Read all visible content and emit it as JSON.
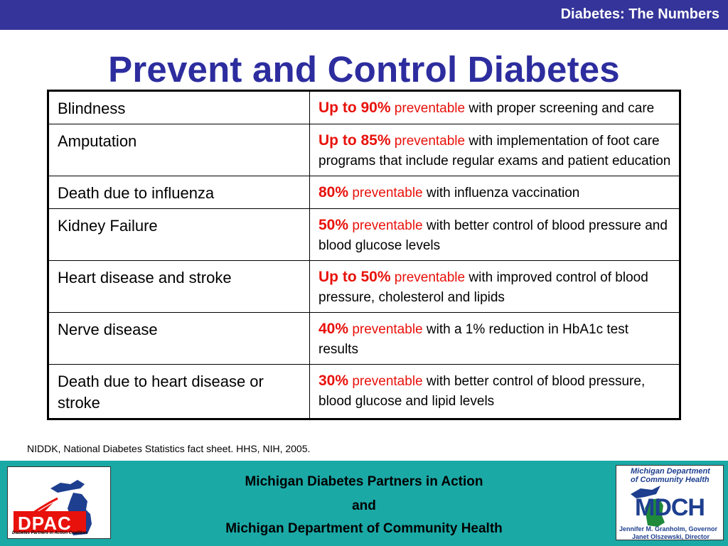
{
  "header": {
    "section_title": "Diabetes: The Numbers"
  },
  "slide": {
    "title": "Prevent and Control Diabetes"
  },
  "table": {
    "rows": [
      {
        "condition": "Blindness",
        "rate": "Up to 90%",
        "preventable": "preventable",
        "detail": " with proper screening and care"
      },
      {
        "condition": "Amputation",
        "rate": "Up to 85%",
        "preventable": "preventable",
        "detail": " with implementation of foot care programs that include regular exams and patient education"
      },
      {
        "condition": "Death due to influenza",
        "rate": "80%",
        "preventable": "preventable",
        "detail": " with influenza vaccination"
      },
      {
        "condition": "Kidney Failure",
        "rate": "50%",
        "preventable": "preventable",
        "detail": " with better control of blood pressure and blood glucose levels"
      },
      {
        "condition": "Heart disease and stroke",
        "rate": "Up to 50%",
        "preventable": "preventable",
        "detail": " with improved control of blood pressure, cholesterol and lipids"
      },
      {
        "condition": "Nerve disease",
        "rate": "40%",
        "preventable": "preventable",
        "detail": " with a 1% reduction in HbA1c test results"
      },
      {
        "condition": "Death due to heart disease or stroke",
        "rate": "30%",
        "preventable": "preventable",
        "detail": " with better control of blood pressure, blood glucose and lipid levels"
      }
    ]
  },
  "source": "NIDDK, National Diabetes Statistics fact sheet. HHS, NIH, 2005.",
  "footer": {
    "line1": "Michigan Diabetes Partners in Action",
    "line2": "and",
    "line3": "Michigan Department of Community Health"
  },
  "logos": {
    "left": {
      "letters": "DPAC",
      "tagline": "Diabetes Partners in Action Coalition"
    },
    "right": {
      "org_line1": "Michigan Department",
      "org_line2": "of Community Health",
      "letters": "MDCH",
      "gov_line": "Jennifer M. Granholm, Governor",
      "dir_line": "Janet Olszewski, Director"
    }
  },
  "colors": {
    "top_bar": "#34349a",
    "title_blue": "#2d2d9f",
    "highlight_red": "#e8110b",
    "footer_teal": "#1ba9a6"
  }
}
